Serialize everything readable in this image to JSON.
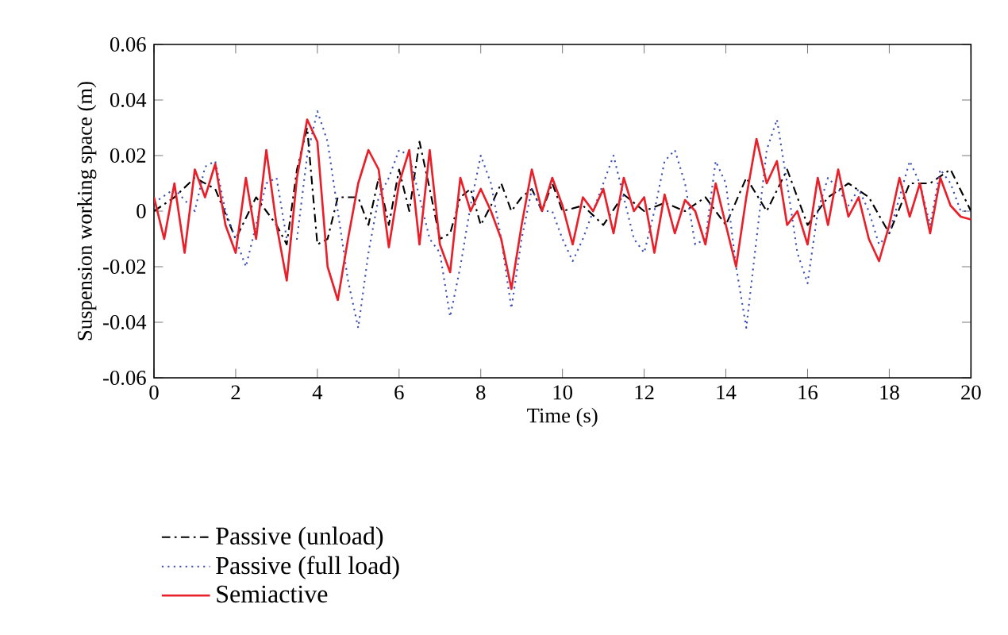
{
  "chart_data": {
    "type": "line",
    "xlabel": "Time (s)",
    "ylabel": "Suspension working space (m)",
    "xlim": [
      0,
      20
    ],
    "ylim": [
      -0.06,
      0.06
    ],
    "xticks": [
      0,
      2,
      4,
      6,
      8,
      10,
      12,
      14,
      16,
      18,
      20
    ],
    "yticks": [
      -0.06,
      -0.04,
      -0.02,
      0,
      0.02,
      0.04,
      0.06
    ],
    "legend": "bottom",
    "grid": false,
    "series": [
      {
        "name": "Passive (unload)",
        "color": "#000000",
        "line_style": "dashdotted",
        "x": [
          0,
          0.5,
          1,
          1.5,
          2,
          2.5,
          2.75,
          3,
          3.25,
          3.5,
          3.75,
          4,
          4.25,
          4.5,
          4.75,
          5,
          5.25,
          5.5,
          5.75,
          6,
          6.25,
          6.5,
          6.75,
          7,
          7.25,
          7.5,
          7.75,
          8,
          8.25,
          8.5,
          8.75,
          9,
          9.25,
          9.5,
          9.75,
          10,
          10.5,
          11,
          11.5,
          12,
          12.5,
          13,
          13.5,
          14,
          14.5,
          15,
          15.5,
          16,
          16.5,
          17,
          17.5,
          18,
          18.5,
          19,
          19.5,
          20
        ],
        "values": [
          0,
          0.005,
          0.012,
          0.008,
          -0.01,
          0.005,
          0,
          -0.005,
          -0.012,
          0.015,
          0.03,
          -0.012,
          -0.01,
          0.005,
          0.005,
          0.005,
          -0.005,
          0.012,
          -0.005,
          0.015,
          0,
          0.025,
          0.008,
          -0.01,
          -0.008,
          0.005,
          0.008,
          -0.005,
          0.002,
          0.01,
          0,
          0.005,
          0.008,
          0,
          0.01,
          0,
          0.002,
          -0.005,
          0.006,
          0,
          0.003,
          0,
          0.005,
          -0.005,
          0.012,
          0,
          0.015,
          -0.005,
          0.005,
          0.01,
          0.005,
          -0.008,
          0.01,
          0.01,
          0.015,
          0
        ]
      },
      {
        "name": "Passive (full load)",
        "color": "#3c50b4",
        "line_style": "dotted",
        "x": [
          0,
          0.5,
          1,
          1.25,
          1.5,
          1.75,
          2,
          2.25,
          2.5,
          2.75,
          3,
          3.25,
          3.5,
          3.75,
          4,
          4.25,
          4.5,
          4.75,
          5,
          5.25,
          5.5,
          5.75,
          6,
          6.25,
          6.5,
          6.75,
          7,
          7.25,
          7.5,
          7.75,
          8,
          8.25,
          8.5,
          8.75,
          9,
          9.25,
          9.5,
          9.75,
          10,
          10.25,
          10.5,
          10.75,
          11,
          11.25,
          11.5,
          11.75,
          12,
          12.25,
          12.5,
          12.75,
          13,
          13.25,
          13.5,
          13.75,
          14,
          14.25,
          14.5,
          14.75,
          15,
          15.25,
          15.5,
          15.75,
          16,
          16.25,
          16.5,
          16.75,
          17,
          17.25,
          17.5,
          17.75,
          18,
          18.25,
          18.5,
          18.75,
          19,
          19.25,
          19.5,
          19.75,
          20
        ],
        "values": [
          0.003,
          0.008,
          0,
          0.016,
          0.018,
          0,
          -0.01,
          -0.02,
          -0.005,
          0.01,
          0.012,
          -0.01,
          -0.01,
          0.02,
          0.036,
          0.025,
          0,
          -0.025,
          -0.042,
          -0.015,
          0.005,
          0.012,
          0.022,
          0.02,
          0.005,
          -0.01,
          -0.015,
          -0.038,
          -0.02,
          0.002,
          0.02,
          0.01,
          -0.01,
          -0.035,
          -0.01,
          0.008,
          0,
          0,
          -0.01,
          -0.018,
          -0.01,
          0,
          0.01,
          0.02,
          0.005,
          -0.01,
          -0.015,
          0,
          0.018,
          0.022,
          0.01,
          -0.012,
          -0.01,
          0.018,
          0.01,
          -0.02,
          -0.042,
          -0.01,
          0.022,
          0.033,
          0.01,
          -0.015,
          -0.026,
          0,
          0.012,
          0.008,
          0.002,
          0.008,
          0,
          -0.012,
          -0.008,
          0.005,
          0.018,
          0.01,
          -0.005,
          0.015,
          0.01,
          0,
          0
        ]
      },
      {
        "name": "Semiactive",
        "color": "#e8202a",
        "line_style": "solid",
        "x": [
          0,
          0.25,
          0.5,
          0.75,
          1,
          1.25,
          1.5,
          1.75,
          2,
          2.25,
          2.5,
          2.75,
          3,
          3.25,
          3.5,
          3.75,
          4,
          4.25,
          4.5,
          4.75,
          5,
          5.25,
          5.5,
          5.75,
          6,
          6.25,
          6.5,
          6.75,
          7,
          7.25,
          7.5,
          7.75,
          8,
          8.25,
          8.5,
          8.75,
          9,
          9.25,
          9.5,
          9.75,
          10,
          10.25,
          10.5,
          10.75,
          11,
          11.25,
          11.5,
          11.75,
          12,
          12.25,
          12.5,
          12.75,
          13,
          13.25,
          13.5,
          13.75,
          14,
          14.25,
          14.5,
          14.75,
          15,
          15.25,
          15.5,
          15.75,
          16,
          16.25,
          16.5,
          16.75,
          17,
          17.25,
          17.5,
          17.75,
          18,
          18.25,
          18.5,
          18.75,
          19,
          19.25,
          19.5,
          19.75,
          20
        ],
        "values": [
          0.005,
          -0.01,
          0.01,
          -0.015,
          0.015,
          0.005,
          0.017,
          -0.005,
          -0.015,
          0.012,
          -0.01,
          0.022,
          -0.005,
          -0.025,
          0.012,
          0.033,
          0.025,
          -0.02,
          -0.032,
          -0.01,
          0.01,
          0.022,
          0.015,
          -0.013,
          0.01,
          0.022,
          -0.012,
          0.022,
          -0.012,
          -0.022,
          0.012,
          0,
          0.008,
          0,
          -0.01,
          -0.028,
          -0.005,
          0.015,
          0,
          0.012,
          0.002,
          -0.012,
          0.005,
          0,
          0.008,
          -0.008,
          0.012,
          0,
          0.005,
          -0.015,
          0.006,
          -0.008,
          0.004,
          0,
          -0.012,
          0.01,
          -0.005,
          -0.02,
          0.005,
          0.026,
          0.01,
          0.018,
          -0.005,
          0,
          -0.012,
          0.012,
          -0.005,
          0.015,
          -0.002,
          0.005,
          -0.01,
          -0.018,
          -0.005,
          0.012,
          -0.002,
          0.01,
          -0.008,
          0.012,
          0.002,
          -0.002,
          -0.003
        ]
      }
    ]
  }
}
